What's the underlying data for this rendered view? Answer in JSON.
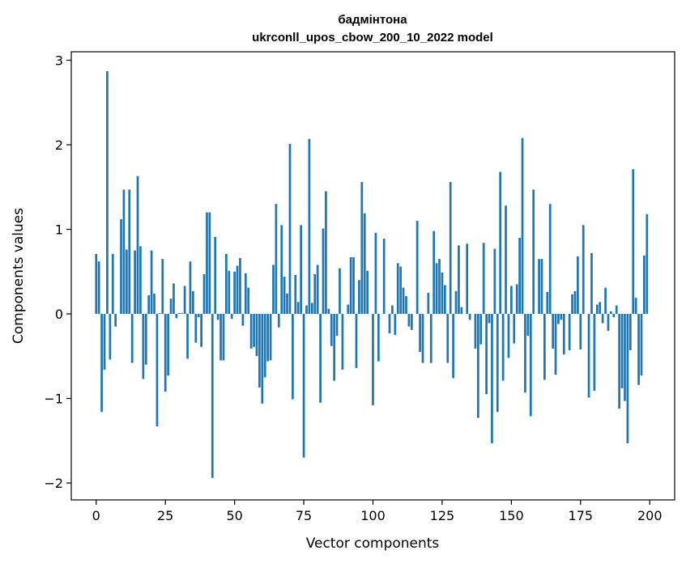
{
  "chart_data": {
    "type": "bar",
    "title": "бадмінтона",
    "subtitle": "ukrconll_upos_cbow_200_10_2022 model",
    "xlabel": "Vector components",
    "ylabel": "Components values",
    "xlim": [
      -9,
      209
    ],
    "ylim": [
      -2.2,
      3.1
    ],
    "x_ticks": [
      0,
      25,
      50,
      75,
      100,
      125,
      150,
      175,
      200
    ],
    "y_ticks": [
      -2,
      -1,
      0,
      1,
      2,
      3
    ],
    "x_tick_labels": [
      "0",
      "25",
      "50",
      "75",
      "100",
      "125",
      "150",
      "175",
      "200"
    ],
    "y_tick_labels": [
      "−2",
      "−1",
      "0",
      "1",
      "2",
      "3"
    ],
    "bar_color": "#1f77b4",
    "grid": false,
    "x": [
      0,
      1,
      2,
      3,
      4,
      5,
      6,
      7,
      8,
      9,
      10,
      11,
      12,
      13,
      14,
      15,
      16,
      17,
      18,
      19,
      20,
      21,
      22,
      23,
      24,
      25,
      26,
      27,
      28,
      29,
      30,
      31,
      32,
      33,
      34,
      35,
      36,
      37,
      38,
      39,
      40,
      41,
      42,
      43,
      44,
      45,
      46,
      47,
      48,
      49,
      50,
      51,
      52,
      53,
      54,
      55,
      56,
      57,
      58,
      59,
      60,
      61,
      62,
      63,
      64,
      65,
      66,
      67,
      68,
      69,
      70,
      71,
      72,
      73,
      74,
      75,
      76,
      77,
      78,
      79,
      80,
      81,
      82,
      83,
      84,
      85,
      86,
      87,
      88,
      89,
      90,
      91,
      92,
      93,
      94,
      95,
      96,
      97,
      98,
      99,
      100,
      101,
      102,
      103,
      104,
      105,
      106,
      107,
      108,
      109,
      110,
      111,
      112,
      113,
      114,
      115,
      116,
      117,
      118,
      119,
      120,
      121,
      122,
      123,
      124,
      125,
      126,
      127,
      128,
      129,
      130,
      131,
      132,
      133,
      134,
      135,
      136,
      137,
      138,
      139,
      140,
      141,
      142,
      143,
      144,
      145,
      146,
      147,
      148,
      149,
      150,
      151,
      152,
      153,
      154,
      155,
      156,
      157,
      158,
      159,
      160,
      161,
      162,
      163,
      164,
      165,
      166,
      167,
      168,
      169,
      170,
      171,
      172,
      173,
      174,
      175,
      176,
      177,
      178,
      179,
      180,
      181,
      182,
      183,
      184,
      185,
      186,
      187,
      188,
      189,
      190,
      191,
      192,
      193,
      194,
      195,
      196,
      197,
      198,
      199
    ],
    "values": [
      0.71,
      0.62,
      -1.16,
      -0.66,
      2.87,
      -0.54,
      0.71,
      -0.15,
      0.0,
      1.12,
      1.47,
      0.76,
      1.47,
      -0.58,
      0.75,
      1.63,
      0.8,
      -0.77,
      -0.6,
      0.22,
      0.75,
      0.24,
      -1.33,
      0.01,
      0.65,
      -0.92,
      -0.73,
      0.18,
      0.36,
      -0.05,
      0.01,
      0.01,
      0.33,
      -0.53,
      0.62,
      0.27,
      -0.34,
      -0.04,
      -0.39,
      0.47,
      1.2,
      1.2,
      -1.94,
      0.91,
      -0.07,
      -0.55,
      -0.55,
      0.71,
      0.51,
      -0.06,
      0.5,
      0.57,
      0.66,
      -0.14,
      0.48,
      0.31,
      -0.41,
      -0.39,
      -0.5,
      -0.87,
      -1.06,
      -0.75,
      -0.56,
      -0.55,
      0.58,
      1.3,
      -0.16,
      1.05,
      0.44,
      0.24,
      2.01,
      -1.01,
      0.46,
      0.14,
      1.05,
      -1.7,
      0.1,
      2.07,
      0.13,
      0.47,
      0.58,
      -1.05,
      1.01,
      1.45,
      0.06,
      -0.38,
      -0.79,
      -0.26,
      0.54,
      -0.66,
      0.0,
      0.11,
      0.67,
      0.67,
      -0.64,
      0.4,
      1.56,
      1.19,
      0.51,
      0.0,
      -1.08,
      0.96,
      -0.56,
      0.0,
      0.89,
      0.0,
      -0.23,
      0.1,
      -0.25,
      0.6,
      0.56,
      0.31,
      0.21,
      -0.15,
      -0.19,
      0.0,
      1.1,
      -0.45,
      -0.58,
      0.0,
      0.25,
      -0.58,
      0.98,
      0.6,
      0.65,
      0.49,
      0.34,
      -0.58,
      1.56,
      -0.76,
      0.27,
      0.81,
      0.08,
      0.0,
      0.83,
      -0.07,
      0.0,
      -0.41,
      -1.23,
      -0.36,
      0.84,
      -0.95,
      -0.11,
      -1.53,
      0.77,
      -1.16,
      1.68,
      -0.79,
      1.28,
      -0.52,
      0.33,
      -0.35,
      0.35,
      0.9,
      2.08,
      -0.93,
      -0.26,
      -1.21,
      1.47,
      0.0,
      0.65,
      0.65,
      -0.78,
      0.26,
      1.3,
      -0.41,
      -0.72,
      -0.12,
      -0.07,
      -0.48,
      0.0,
      -0.43,
      0.23,
      0.27,
      0.68,
      -0.42,
      1.05,
      0.0,
      -0.99,
      0.72,
      -0.91,
      0.11,
      0.14,
      -0.11,
      0.31,
      -0.2,
      0.03,
      -0.04,
      0.1,
      -1.12,
      -0.88,
      -1.03,
      -1.53,
      -0.43,
      1.71,
      0.19,
      -0.84,
      -0.73,
      0.69,
      1.18
    ]
  }
}
